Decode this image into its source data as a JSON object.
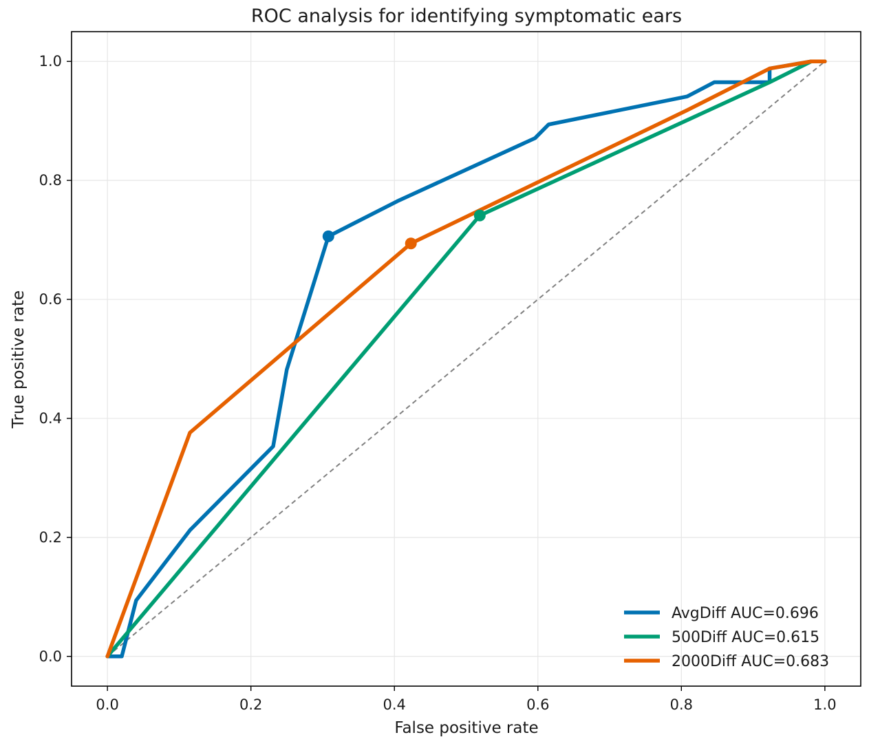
{
  "chart_data": {
    "type": "line",
    "title": "ROC analysis for identifying symptomatic ears",
    "xlabel": "False positive rate",
    "ylabel": "True positive rate",
    "xlim": [
      -0.05,
      1.05
    ],
    "ylim": [
      -0.05,
      1.05
    ],
    "xticks": [
      0.0,
      0.2,
      0.4,
      0.6,
      0.8,
      1.0
    ],
    "yticks": [
      0.0,
      0.2,
      0.4,
      0.6,
      0.8,
      1.0
    ],
    "xtick_labels": [
      "0.0",
      "0.2",
      "0.4",
      "0.6",
      "0.8",
      "1.0"
    ],
    "ytick_labels": [
      "0.0",
      "0.2",
      "0.4",
      "0.6",
      "0.8",
      "1.0"
    ],
    "grid": true,
    "legend_position": "bottom-right",
    "reference_line": {
      "x": [
        0,
        1
      ],
      "y": [
        0,
        1
      ],
      "color": "#808080",
      "style": "dashed"
    },
    "series": [
      {
        "name": "AvgDiff AUC=0.696",
        "color": "#0072B2",
        "x": [
          0.0,
          0.02,
          0.04,
          0.115,
          0.231,
          0.25,
          0.308,
          0.404,
          0.596,
          0.615,
          0.808,
          0.846,
          0.923,
          0.923,
          0.981,
          1.0
        ],
        "y": [
          0.0,
          0.0,
          0.094,
          0.212,
          0.353,
          0.482,
          0.706,
          0.765,
          0.871,
          0.894,
          0.941,
          0.965,
          0.965,
          0.988,
          1.0,
          1.0
        ],
        "marker": {
          "x": 0.308,
          "y": 0.706
        }
      },
      {
        "name": "500Diff AUC=0.615",
        "color": "#009E73",
        "x": [
          0.0,
          0.519,
          0.923,
          0.981,
          1.0
        ],
        "y": [
          0.0,
          0.741,
          0.965,
          1.0,
          1.0
        ],
        "marker": {
          "x": 0.519,
          "y": 0.741
        }
      },
      {
        "name": "2000Diff AUC=0.683",
        "color": "#E66100",
        "x": [
          0.0,
          0.115,
          0.423,
          0.808,
          0.923,
          0.981,
          1.0
        ],
        "y": [
          0.0,
          0.376,
          0.694,
          0.918,
          0.988,
          1.0,
          1.0
        ],
        "marker": {
          "x": 0.423,
          "y": 0.694
        }
      }
    ]
  }
}
